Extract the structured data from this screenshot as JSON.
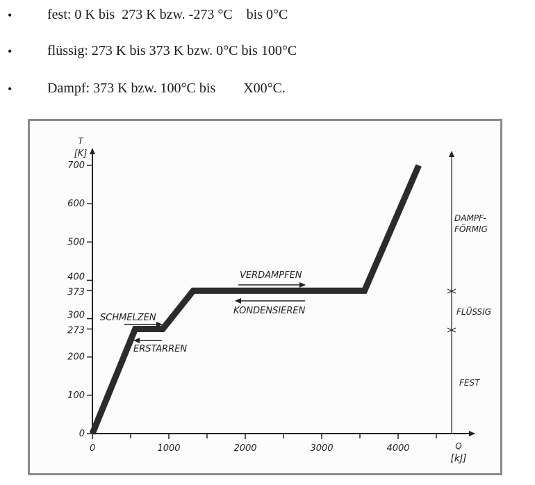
{
  "bullets": [
    {
      "text": "fest: 0 K bis  273 K bzw. -273 °C    bis 0°C"
    },
    {
      "text": "flüssig: 273 K bis 373 K bzw. 0°C bis 100°C"
    },
    {
      "text": "Dampf: 373 K bzw. 100°C bis        X00°C."
    }
  ],
  "bullet_symbol": "•",
  "chart_data": {
    "type": "line",
    "ylabel_top": "T",
    "ylabel_unit": "[K]",
    "xlabel_top": "Q",
    "xlabel_unit": "[kJ]",
    "x_ticks": [
      {
        "value": 0,
        "label": "0"
      },
      {
        "value": 1000,
        "label": "1000"
      },
      {
        "value": 2000,
        "label": "2000"
      },
      {
        "value": 3000,
        "label": "3000"
      },
      {
        "value": 4000,
        "label": "4000"
      }
    ],
    "x_minor_ticks": [
      500,
      1500,
      2500,
      3500,
      4500
    ],
    "y_ticks": [
      {
        "value": 0,
        "label": "0"
      },
      {
        "value": 100,
        "label": "100"
      },
      {
        "value": 200,
        "label": "200"
      },
      {
        "value": 273,
        "label": "273"
      },
      {
        "value": 300,
        "label": "300"
      },
      {
        "value": 373,
        "label": "373"
      },
      {
        "value": 400,
        "label": "400"
      },
      {
        "value": 500,
        "label": "500"
      },
      {
        "value": 600,
        "label": "600"
      },
      {
        "value": 700,
        "label": "700"
      }
    ],
    "xlim": [
      0,
      4900
    ],
    "ylim": [
      0,
      780
    ],
    "series": [
      {
        "x": [
          0,
          560,
          920,
          1320,
          3560,
          4270
        ],
        "y": [
          0,
          273,
          273,
          373,
          373,
          700
        ]
      }
    ],
    "annotations": {
      "schmelzen": "SCHMELZEN",
      "erstarren": "ERSTARREN",
      "verdampfen": "VERDAMPFEN",
      "kondensieren": "KONDENSIEREN"
    },
    "phases": [
      {
        "label": "DAMPF-",
        "label2": "FÖRMIG"
      },
      {
        "label": "FLÜSSIG"
      },
      {
        "label": "FEST"
      }
    ],
    "colors": {
      "curve": "#2b2b2b",
      "axis": "#222222",
      "frame": "#8a8a8a"
    }
  }
}
